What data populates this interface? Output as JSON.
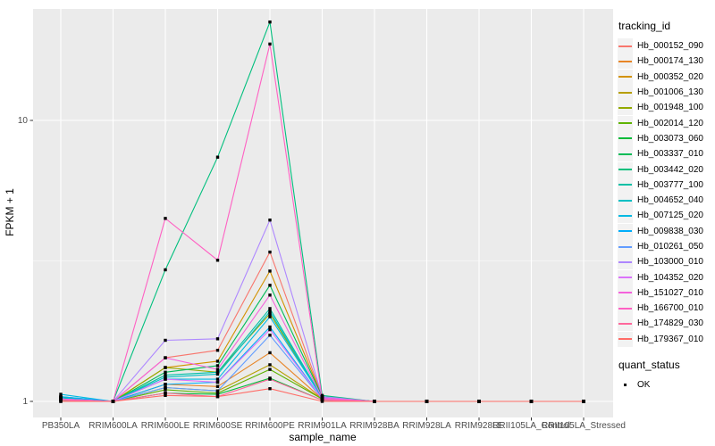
{
  "chart_data": {
    "type": "line",
    "title": "",
    "xlabel": "sample_name",
    "ylabel": "FPKM + 1",
    "y_scale": "log10",
    "y_ticks": [
      1,
      10
    ],
    "ylim": [
      0.82,
      25
    ],
    "grid": "on",
    "legend_position": "right",
    "point_shape": "filled-square",
    "point_color": "#000000",
    "categories": [
      "PB350LA",
      "RRIM600LA",
      "RRIM600LE",
      "RRIM600SE",
      "RRIM600PE",
      "RRIM901LA",
      "RRIM928BA",
      "RRIM928LA",
      "RRIM928LE",
      "RRII105LA_Control",
      "RRII105LA_Stressed"
    ],
    "series": [
      {
        "name": "Hb_000152_090",
        "color": "#F8766D",
        "values": [
          1.02,
          1,
          1.43,
          1.52,
          3.4,
          1.04,
          1,
          1,
          1,
          1,
          1
        ]
      },
      {
        "name": "Hb_000174_130",
        "color": "#E88526",
        "values": [
          1.02,
          1,
          1.15,
          1.13,
          1.49,
          1.02,
          1,
          1,
          1,
          1,
          1
        ]
      },
      {
        "name": "Hb_000352_020",
        "color": "#D39200",
        "values": [
          1.03,
          1,
          1.32,
          1.39,
          2.91,
          1.04,
          1,
          1,
          1,
          1,
          1
        ]
      },
      {
        "name": "Hb_001006_130",
        "color": "#B79F00",
        "values": [
          1.02,
          1,
          1.12,
          1.09,
          1.35,
          1.02,
          1,
          1,
          1,
          1,
          1
        ]
      },
      {
        "name": "Hb_001948_100",
        "color": "#93AA00",
        "values": [
          1.03,
          1,
          1.32,
          1.27,
          2.05,
          1.03,
          1,
          1,
          1,
          1,
          1
        ]
      },
      {
        "name": "Hb_002014_120",
        "color": "#5EB300",
        "values": [
          1.02,
          1,
          1.1,
          1.07,
          1.3,
          1.02,
          1,
          1,
          1,
          1,
          1
        ]
      },
      {
        "name": "Hb_003073_060",
        "color": "#00BA38",
        "values": [
          1.01,
          1,
          1.07,
          1.06,
          1.21,
          1.01,
          1,
          1,
          1,
          1,
          1
        ]
      },
      {
        "name": "Hb_003337_010",
        "color": "#00BC57",
        "values": [
          1.03,
          1,
          1.27,
          1.34,
          2.59,
          1.04,
          1,
          1,
          1,
          1,
          1
        ]
      },
      {
        "name": "Hb_003442_020",
        "color": "#00BF7D",
        "values": [
          1.02,
          1,
          2.94,
          7.4,
          22.4,
          1.05,
          1,
          1,
          1,
          1,
          1
        ]
      },
      {
        "name": "Hb_003777_100",
        "color": "#00C0A5",
        "values": [
          1.04,
          1,
          1.24,
          1.27,
          2.14,
          1.03,
          1,
          1,
          1,
          1,
          1
        ]
      },
      {
        "name": "Hb_004652_040",
        "color": "#00BFC4",
        "values": [
          1.03,
          1,
          1.22,
          1.25,
          2.09,
          1.03,
          1,
          1,
          1,
          1,
          1
        ]
      },
      {
        "name": "Hb_007125_020",
        "color": "#00B9E3",
        "values": [
          1.06,
          1,
          1.2,
          1.2,
          2.0,
          1.03,
          1,
          1,
          1,
          1,
          1
        ]
      },
      {
        "name": "Hb_009838_030",
        "color": "#00ADFA",
        "values": [
          1.04,
          1,
          1.15,
          1.17,
          1.84,
          1.02,
          1,
          1,
          1,
          1,
          1
        ]
      },
      {
        "name": "Hb_010261_050",
        "color": "#619CFF",
        "values": [
          1.02,
          1,
          1.12,
          1.09,
          1.72,
          1.02,
          1,
          1,
          1,
          1,
          1
        ]
      },
      {
        "name": "Hb_103000_010",
        "color": "#AE87FF",
        "values": [
          1.02,
          1,
          1.65,
          1.67,
          4.42,
          1.04,
          1,
          1,
          1,
          1,
          1
        ]
      },
      {
        "name": "Hb_104352_020",
        "color": "#DB72FB",
        "values": [
          1.02,
          1,
          1.2,
          1.17,
          1.8,
          1.02,
          1,
          1,
          1,
          1,
          1
        ]
      },
      {
        "name": "Hb_151027_010",
        "color": "#F562DC",
        "values": [
          1.02,
          1,
          1.43,
          1.3,
          2.39,
          1.03,
          1,
          1,
          1,
          1,
          1
        ]
      },
      {
        "name": "Hb_166700_010",
        "color": "#FF61C3",
        "values": [
          1.0,
          1,
          4.48,
          3.18,
          18.7,
          1.02,
          1,
          1,
          1,
          1,
          1
        ]
      },
      {
        "name": "Hb_174829_030",
        "color": "#FF689C",
        "values": [
          1.01,
          1,
          1.07,
          1.04,
          1.2,
          1.01,
          1,
          1,
          1,
          1,
          1
        ]
      },
      {
        "name": "Hb_179367_010",
        "color": "#FF6C67",
        "values": [
          1.0,
          1,
          1.05,
          1.04,
          1.11,
          1.0,
          1,
          1,
          1,
          1,
          1
        ]
      }
    ],
    "legend": {
      "color_title": "tracking_id",
      "shape_title": "quant_status",
      "shape_items": [
        {
          "label": "OK"
        }
      ]
    }
  },
  "colors": {
    "panel_background": "#EBEBEB",
    "grid_line": "#FFFFFF",
    "tick_text": "#4D4D4D",
    "tick_mark": "#333333",
    "legend_key_background": "#F2F2F2",
    "point": "#000000"
  }
}
